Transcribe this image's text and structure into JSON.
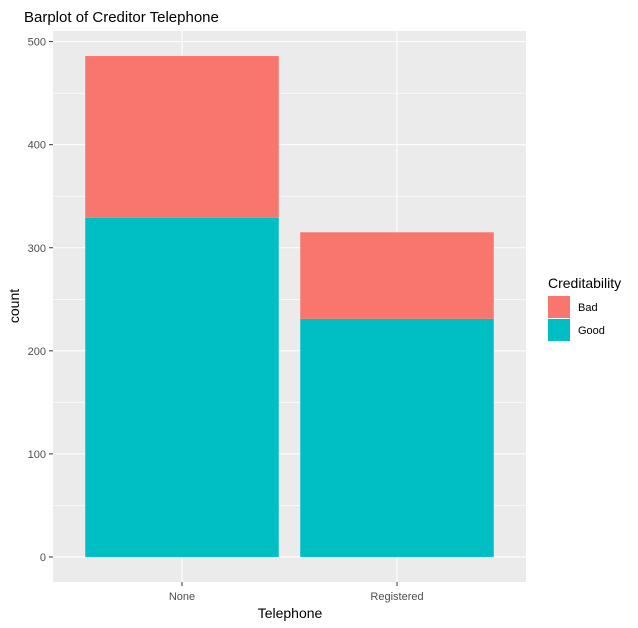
{
  "chart_data": {
    "type": "bar",
    "stacked": true,
    "title": "Barplot of Creditor Telephone",
    "xlabel": "Telephone",
    "ylabel": "count",
    "categories": [
      "None",
      "Registered"
    ],
    "series": [
      {
        "name": "Good",
        "values": [
          329,
          231
        ],
        "color": "#00bfc4"
      },
      {
        "name": "Bad",
        "values": [
          157,
          84
        ],
        "color": "#f8766d"
      }
    ],
    "ylim": [
      -24.3,
      510.3
    ],
    "yticks": [
      0,
      100,
      200,
      300,
      400,
      500
    ],
    "legend": {
      "title": "Creditability",
      "position": "right",
      "order": [
        "Bad",
        "Good"
      ]
    },
    "grid": true,
    "panel_background": "#ebebeb",
    "grid_color": "#ffffff"
  }
}
